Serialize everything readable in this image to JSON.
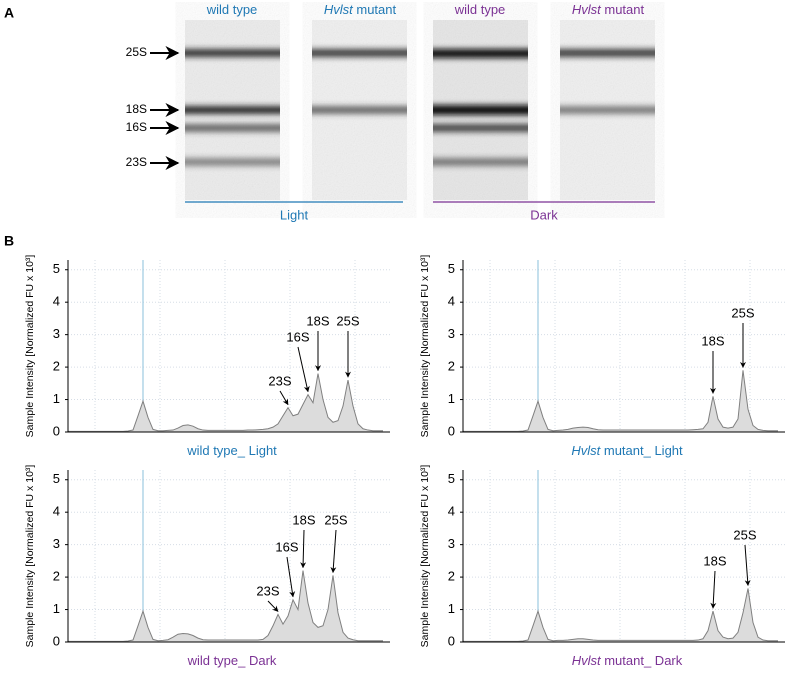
{
  "panel_a": {
    "label": "A",
    "lanes": [
      {
        "parts": [
          {
            "text": "wild type"
          }
        ],
        "color": "#1f78b4"
      },
      {
        "parts": [
          {
            "text": "Hvlst",
            "italic": true
          },
          {
            "text": " mutant"
          }
        ],
        "color": "#1f78b4"
      },
      {
        "parts": [
          {
            "text": "wild type"
          }
        ],
        "color": "#7b3294"
      },
      {
        "parts": [
          {
            "text": "Hvlst",
            "italic": true
          },
          {
            "text": " mutant"
          }
        ],
        "color": "#7b3294"
      }
    ],
    "bands": [
      "25S",
      "18S",
      "16S",
      "23S"
    ],
    "groups": [
      {
        "text": "Light",
        "color": "#1f78b4"
      },
      {
        "text": "Dark",
        "color": "#7b3294"
      }
    ]
  },
  "panel_b": {
    "label": "B"
  },
  "chart_data": [
    {
      "type": "area",
      "ylabel": "Sample Intensity [Normalized FU x 10³]",
      "title_parts": [
        {
          "text": "wild type_ Light"
        }
      ],
      "title_color": "#1f78b4",
      "ylim": [
        0,
        5.3
      ],
      "yticks": [
        0,
        1,
        2,
        3,
        4,
        5
      ],
      "grid": true,
      "color": "#808080",
      "fill": "#dcdcdc",
      "annotations": [
        "23S",
        "16S",
        "18S",
        "25S"
      ],
      "values": [
        0.02,
        0.02,
        0.02,
        0.02,
        0.02,
        0.02,
        0.02,
        0.02,
        0.02,
        0.02,
        0.02,
        0.02,
        0.03,
        0.06,
        0.5,
        0.95,
        0.45,
        0.08,
        0.04,
        0.04,
        0.05,
        0.06,
        0.12,
        0.2,
        0.22,
        0.18,
        0.1,
        0.06,
        0.05,
        0.05,
        0.05,
        0.05,
        0.05,
        0.05,
        0.05,
        0.05,
        0.06,
        0.06,
        0.07,
        0.08,
        0.1,
        0.15,
        0.25,
        0.5,
        0.75,
        0.5,
        0.55,
        0.85,
        1.15,
        0.9,
        1.8,
        1.0,
        0.45,
        0.3,
        0.35,
        0.8,
        1.6,
        0.8,
        0.25,
        0.1,
        0.06,
        0.04,
        0.04,
        0.04
      ]
    },
    {
      "type": "area",
      "ylabel": "Sample Intensity [Normalized FU x 10³]",
      "title_parts": [
        {
          "text": "Hvlst",
          "italic": true
        },
        {
          "text": " mutant_ Light"
        }
      ],
      "title_color": "#1f78b4",
      "ylim": [
        0,
        5.3
      ],
      "yticks": [
        0,
        1,
        2,
        3,
        4,
        5
      ],
      "grid": true,
      "color": "#808080",
      "fill": "#dcdcdc",
      "annotations": [
        "18S",
        "25S"
      ],
      "values": [
        0.02,
        0.02,
        0.02,
        0.02,
        0.02,
        0.02,
        0.02,
        0.02,
        0.02,
        0.02,
        0.02,
        0.02,
        0.03,
        0.06,
        0.5,
        0.95,
        0.45,
        0.08,
        0.04,
        0.05,
        0.06,
        0.08,
        0.12,
        0.14,
        0.15,
        0.14,
        0.1,
        0.07,
        0.06,
        0.06,
        0.06,
        0.06,
        0.06,
        0.06,
        0.06,
        0.06,
        0.06,
        0.06,
        0.06,
        0.06,
        0.06,
        0.06,
        0.06,
        0.06,
        0.06,
        0.06,
        0.07,
        0.08,
        0.1,
        0.3,
        1.1,
        0.4,
        0.15,
        0.12,
        0.15,
        0.4,
        1.9,
        0.7,
        0.2,
        0.08,
        0.05,
        0.04,
        0.04,
        0.04
      ]
    },
    {
      "type": "area",
      "ylabel": "Sample Intensity [Normalized FU x 10³]",
      "title_parts": [
        {
          "text": "wild type_ Dark"
        }
      ],
      "title_color": "#7b3294",
      "ylim": [
        0,
        5.3
      ],
      "yticks": [
        0,
        1,
        2,
        3,
        4,
        5
      ],
      "grid": true,
      "color": "#808080",
      "fill": "#dcdcdc",
      "annotations": [
        "23S",
        "16S",
        "18S",
        "25S"
      ],
      "values": [
        0.02,
        0.02,
        0.02,
        0.02,
        0.02,
        0.02,
        0.02,
        0.02,
        0.02,
        0.02,
        0.02,
        0.02,
        0.03,
        0.06,
        0.5,
        0.95,
        0.45,
        0.08,
        0.04,
        0.05,
        0.07,
        0.15,
        0.24,
        0.26,
        0.25,
        0.2,
        0.12,
        0.07,
        0.06,
        0.06,
        0.06,
        0.06,
        0.06,
        0.06,
        0.06,
        0.06,
        0.06,
        0.06,
        0.06,
        0.08,
        0.2,
        0.5,
        0.85,
        0.55,
        0.8,
        1.3,
        1.0,
        2.2,
        1.2,
        0.6,
        0.45,
        0.5,
        1.0,
        2.05,
        0.9,
        0.3,
        0.12,
        0.07,
        0.04,
        0.04,
        0.04,
        0.04,
        0.04,
        0.04
      ]
    },
    {
      "type": "area",
      "ylabel": "Sample Intensity [Normalized FU x 10³]",
      "title_parts": [
        {
          "text": "Hvlst",
          "italic": true
        },
        {
          "text": " mutant_ Dark"
        }
      ],
      "title_color": "#7b3294",
      "ylim": [
        0,
        5.3
      ],
      "yticks": [
        0,
        1,
        2,
        3,
        4,
        5
      ],
      "grid": true,
      "color": "#808080",
      "fill": "#dcdcdc",
      "annotations": [
        "18S",
        "25S"
      ],
      "values": [
        0.02,
        0.02,
        0.02,
        0.02,
        0.02,
        0.02,
        0.02,
        0.02,
        0.02,
        0.02,
        0.02,
        0.02,
        0.03,
        0.06,
        0.5,
        0.95,
        0.45,
        0.08,
        0.04,
        0.05,
        0.05,
        0.06,
        0.08,
        0.1,
        0.1,
        0.08,
        0.06,
        0.05,
        0.05,
        0.05,
        0.05,
        0.05,
        0.05,
        0.05,
        0.05,
        0.05,
        0.05,
        0.05,
        0.05,
        0.05,
        0.05,
        0.05,
        0.05,
        0.05,
        0.05,
        0.05,
        0.05,
        0.06,
        0.1,
        0.35,
        0.95,
        0.35,
        0.15,
        0.1,
        0.12,
        0.3,
        0.9,
        1.65,
        0.6,
        0.15,
        0.06,
        0.04,
        0.04,
        0.04
      ]
    }
  ]
}
